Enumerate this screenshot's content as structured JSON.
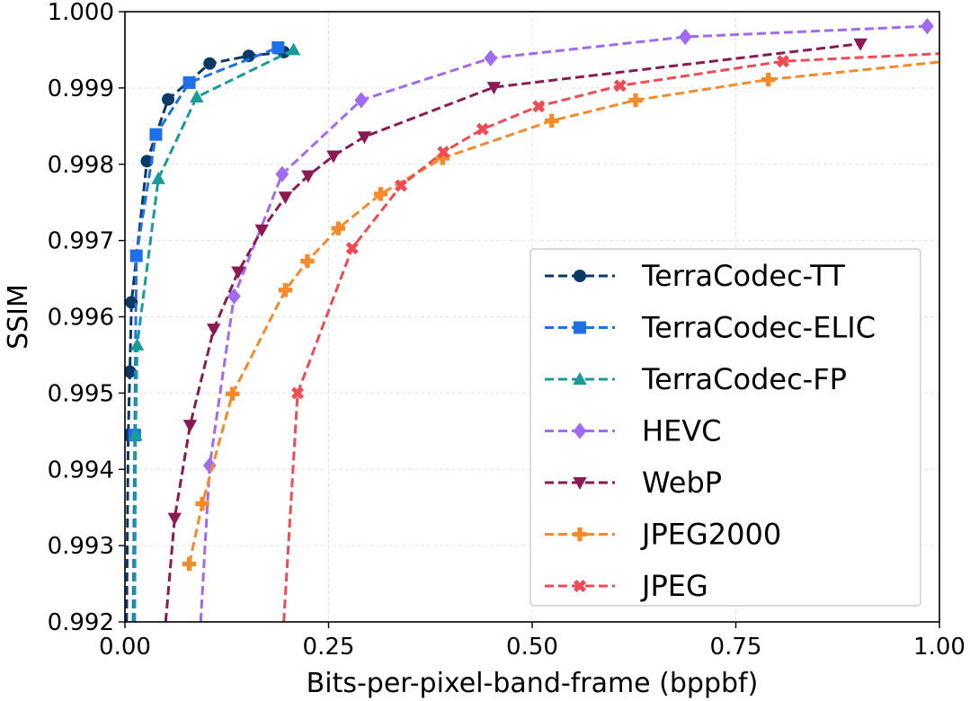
{
  "chart_data": {
    "type": "line",
    "title": "",
    "xlabel": "Bits-per-pixel-band-frame (bppbf)",
    "ylabel": "SSIM",
    "xlim": [
      0.0,
      1.0
    ],
    "ylim": [
      0.992,
      1.0
    ],
    "xticks": [
      0.0,
      0.25,
      0.5,
      0.75,
      1.0
    ],
    "xtick_labels": [
      "0.00",
      "0.25",
      "0.50",
      "0.75",
      "1.00"
    ],
    "yticks": [
      0.992,
      0.993,
      0.994,
      0.995,
      0.996,
      0.997,
      0.998,
      0.999,
      1.0
    ],
    "ytick_labels": [
      "0.992",
      "0.993",
      "0.994",
      "0.995",
      "0.996",
      "0.997",
      "0.998",
      "0.999",
      "1.000"
    ],
    "grid": true,
    "legend_position": "bottom-right",
    "series": [
      {
        "name": "TerraCodec-TT",
        "color": "#0b3a66",
        "marker": "circle",
        "x": [
          0.002,
          0.004,
          0.006,
          0.008,
          0.027,
          0.053,
          0.104,
          0.152,
          0.195
        ],
        "y": [
          0.992,
          0.99445,
          0.99528,
          0.99619,
          0.99804,
          0.99885,
          0.99932,
          0.99942,
          0.99947
        ]
      },
      {
        "name": "TerraCodec-ELIC",
        "color": "#1f6fe8",
        "marker": "square",
        "x": [
          0.01,
          0.012,
          0.014,
          0.038,
          0.079,
          0.188
        ],
        "y": [
          0.992,
          0.99445,
          0.9968,
          0.99839,
          0.99907,
          0.99953
        ]
      },
      {
        "name": "TerraCodec-FP",
        "color": "#179c99",
        "marker": "triangle-up",
        "x": [
          0.012,
          0.013,
          0.015,
          0.041,
          0.088,
          0.207
        ],
        "y": [
          0.992,
          0.99445,
          0.99563,
          0.99781,
          0.99888,
          0.9995
        ]
      },
      {
        "name": "HEVC",
        "color": "#a06bf0",
        "marker": "diamond",
        "x": [
          0.093,
          0.104,
          0.134,
          0.193,
          0.29,
          0.449,
          0.688,
          0.985
        ],
        "y": [
          0.992,
          0.99405,
          0.99627,
          0.99787,
          0.99884,
          0.99939,
          0.99967,
          0.99981
        ]
      },
      {
        "name": "WebP",
        "color": "#8b1a52",
        "marker": "triangle-down",
        "x": [
          0.05,
          0.061,
          0.08,
          0.109,
          0.139,
          0.168,
          0.197,
          0.225,
          0.256,
          0.294,
          0.453,
          0.903
        ],
        "y": [
          0.992,
          0.99336,
          0.99458,
          0.99584,
          0.99659,
          0.99714,
          0.99757,
          0.99785,
          0.99811,
          0.99836,
          0.99901,
          0.99958
        ]
      },
      {
        "name": "JPEG2000",
        "color": "#f58a2a",
        "marker": "plus",
        "x": [
          0.079,
          0.095,
          0.132,
          0.197,
          0.224,
          0.262,
          0.314,
          0.39,
          0.524,
          0.627,
          0.79,
          1.0
        ],
        "y": [
          0.99276,
          0.99355,
          0.99499,
          0.99635,
          0.99673,
          0.99716,
          0.99761,
          0.99808,
          0.99857,
          0.99884,
          0.99911,
          0.99934
        ]
      },
      {
        "name": "JPEG",
        "color": "#ee4b55",
        "marker": "x",
        "x": [
          0.195,
          0.212,
          0.279,
          0.339,
          0.391,
          0.439,
          0.508,
          0.608,
          0.808,
          1.0
        ],
        "y": [
          0.992,
          0.995,
          0.9969,
          0.99772,
          0.99816,
          0.99846,
          0.99876,
          0.99903,
          0.99935,
          0.99945
        ]
      }
    ]
  }
}
